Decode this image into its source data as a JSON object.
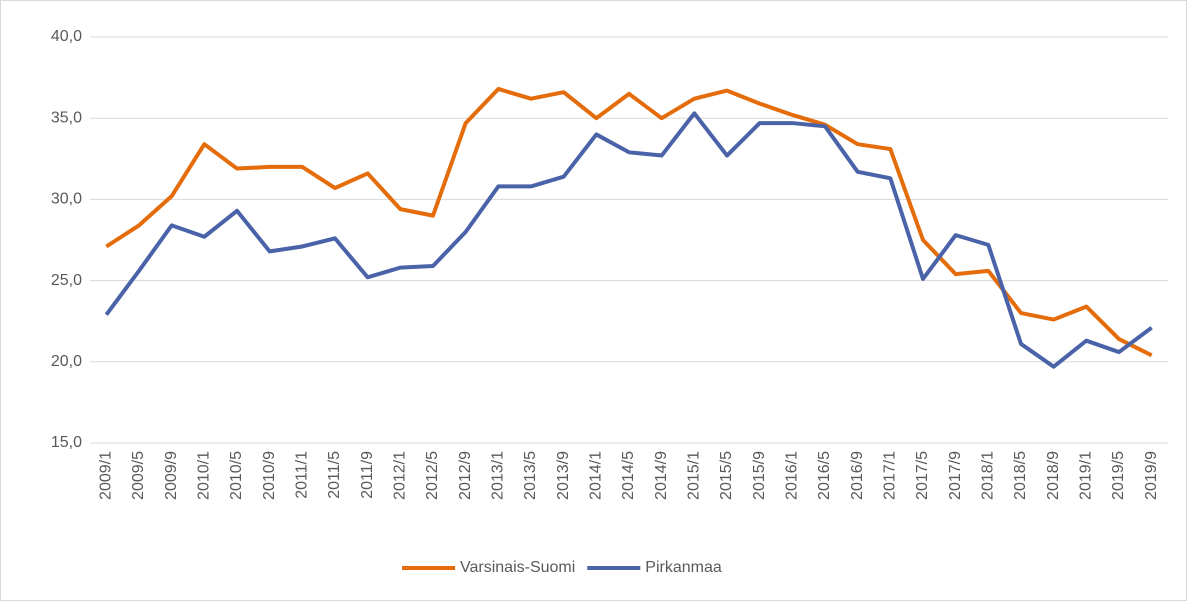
{
  "chart_data": {
    "type": "line",
    "categories": [
      "2009/1",
      "2009/5",
      "2009/9",
      "2010/1",
      "2010/5",
      "2010/9",
      "2011/1",
      "2011/5",
      "2011/9",
      "2012/1",
      "2012/5",
      "2012/9",
      "2013/1",
      "2013/5",
      "2013/9",
      "2014/1",
      "2014/5",
      "2014/9",
      "2015/1",
      "2015/5",
      "2015/9",
      "2016/1",
      "2016/5",
      "2016/9",
      "2017/1",
      "2017/5",
      "2017/9",
      "2018/1",
      "2018/5",
      "2018/9",
      "2019/1",
      "2019/5",
      "2019/9"
    ],
    "series": [
      {
        "name": "Varsinais-Suomi",
        "color": "#e46c0a",
        "values": [
          27.1,
          28.4,
          30.2,
          33.4,
          31.9,
          32.0,
          32.0,
          30.7,
          31.6,
          29.4,
          29.0,
          34.7,
          36.8,
          36.2,
          36.6,
          35.0,
          36.5,
          35.0,
          36.2,
          36.7,
          35.9,
          35.2,
          34.6,
          33.4,
          33.1,
          27.5,
          25.4,
          25.6,
          23.0,
          22.6,
          23.4,
          21.4,
          20.4
        ]
      },
      {
        "name": "Pirkanmaa",
        "color": "#4a63a8",
        "values": [
          22.9,
          25.6,
          28.4,
          27.7,
          29.3,
          26.8,
          27.1,
          27.6,
          25.2,
          25.8,
          25.9,
          28.0,
          30.8,
          30.8,
          31.4,
          34.0,
          32.9,
          32.7,
          35.3,
          32.7,
          34.7,
          34.7,
          34.5,
          31.7,
          31.3,
          25.1,
          27.8,
          27.2,
          21.1,
          19.7,
          21.3,
          20.6,
          22.1
        ]
      }
    ],
    "ylim": [
      15,
      40
    ],
    "yticks": [
      {
        "value": 15,
        "label": "15,0"
      },
      {
        "value": 20,
        "label": "20,0"
      },
      {
        "value": 25,
        "label": "25,0"
      },
      {
        "value": 30,
        "label": "30,0"
      },
      {
        "value": 35,
        "label": "35,0"
      },
      {
        "value": 40,
        "label": "40,0"
      }
    ],
    "grid": true,
    "legend": "bottom"
  }
}
